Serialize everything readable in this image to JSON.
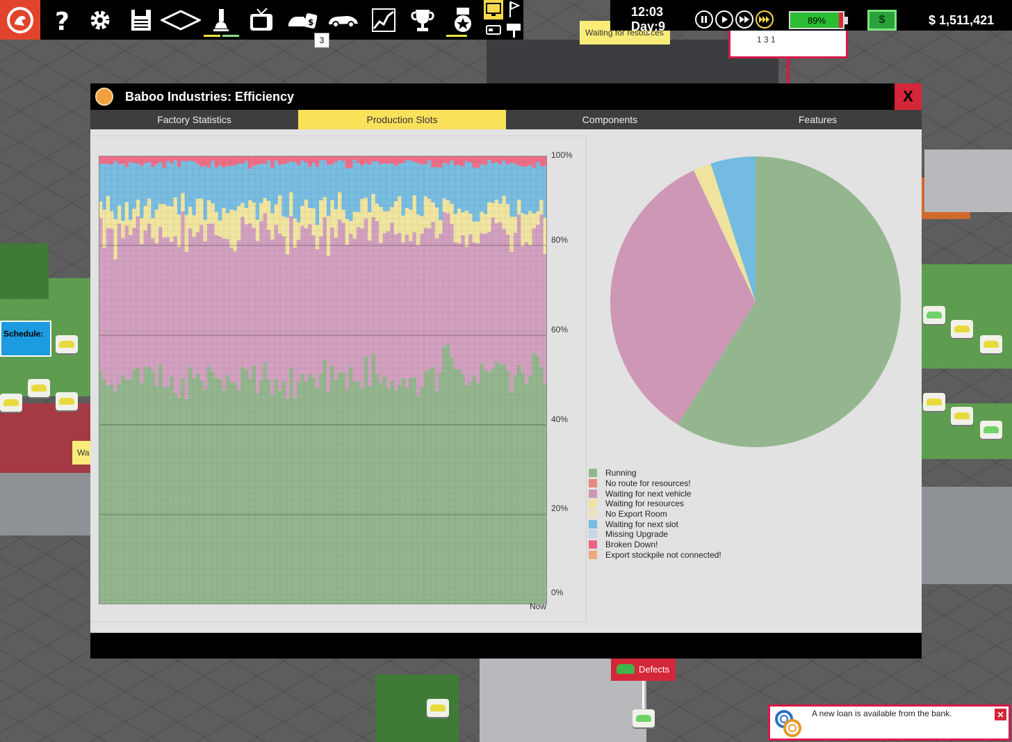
{
  "topbar": {
    "icons": [
      "logo-icon",
      "help-icon",
      "gear-icon",
      "save-icon",
      "zone-icon",
      "research-icon",
      "tv-icon",
      "car-sale-icon",
      "car-icon",
      "chart-icon",
      "trophy-icon",
      "medal-icon",
      "monitor-icon",
      "flag-icon"
    ],
    "badge_count": "3",
    "time": "12:03",
    "day": "Day:9",
    "speed_controls": [
      "pause",
      "play",
      "fast",
      "fastest"
    ],
    "active_speed": "fastest",
    "battery": "89%",
    "cash_icon": "$",
    "money": "$ 1,511,421"
  },
  "world": {
    "waiting_tag": "Waiting for resources",
    "schedule_tag": "Schedule:",
    "wa_tag": "Wa",
    "stat_card": "1   3   1",
    "defects_tag": "Defects"
  },
  "window": {
    "title": "Baboo Industries: Efficiency",
    "close_label": "X",
    "tabs": [
      "Factory Statistics",
      "Production Slots",
      "Components",
      "Features"
    ],
    "active_tab": 1
  },
  "chart_data": [
    {
      "type": "area",
      "title": "",
      "xlabel": "Now",
      "ylabel": "",
      "ylim": [
        0,
        100
      ],
      "yticks": [
        "100%",
        "80%",
        "60%",
        "40%",
        "20%",
        "0%"
      ],
      "stacked": true,
      "x_points": 120,
      "series": [
        {
          "name": "Running",
          "approx_mean_percent": 54,
          "color": "#94b68f"
        },
        {
          "name": "Waiting for next vehicle",
          "approx_mean_percent": 35,
          "color": "#d3a1c0"
        },
        {
          "name": "Waiting for resources",
          "approx_mean_percent": 3,
          "color": "#f1e6a1"
        },
        {
          "name": "Waiting for next slot",
          "approx_mean_percent": 7,
          "color": "#79bde1"
        },
        {
          "name": "Broken Down!",
          "approx_mean_percent": 1,
          "color": "#ee6f88"
        }
      ]
    },
    {
      "type": "pie",
      "slices": [
        {
          "name": "Running",
          "value": 59,
          "color": "#94b68f"
        },
        {
          "name": "Waiting for next vehicle",
          "value": 34,
          "color": "#cd97b5"
        },
        {
          "name": "Waiting for resources",
          "value": 2,
          "color": "#efe39e"
        },
        {
          "name": "Waiting for next slot",
          "value": 5,
          "color": "#73bbe0"
        }
      ]
    }
  ],
  "legend": [
    {
      "label": "Running",
      "color": "#94b68f"
    },
    {
      "label": "No route for resources!",
      "color": "#e88a84"
    },
    {
      "label": "Waiting for next vehicle",
      "color": "#cd97b5"
    },
    {
      "label": "Waiting for resources",
      "color": "#efe39e"
    },
    {
      "label": "No Export Room",
      "color": "#ece0bd"
    },
    {
      "label": "Waiting for next slot",
      "color": "#73bbe0"
    },
    {
      "label": "Missing Upgrade",
      "color": "#c7d5e4"
    },
    {
      "label": "Broken Down!",
      "color": "#ec6488"
    },
    {
      "label": "Export stockpile not connected!",
      "color": "#ecaa7e"
    }
  ],
  "notification": {
    "text": "A new loan is available from the bank.",
    "close_label": "✕"
  }
}
